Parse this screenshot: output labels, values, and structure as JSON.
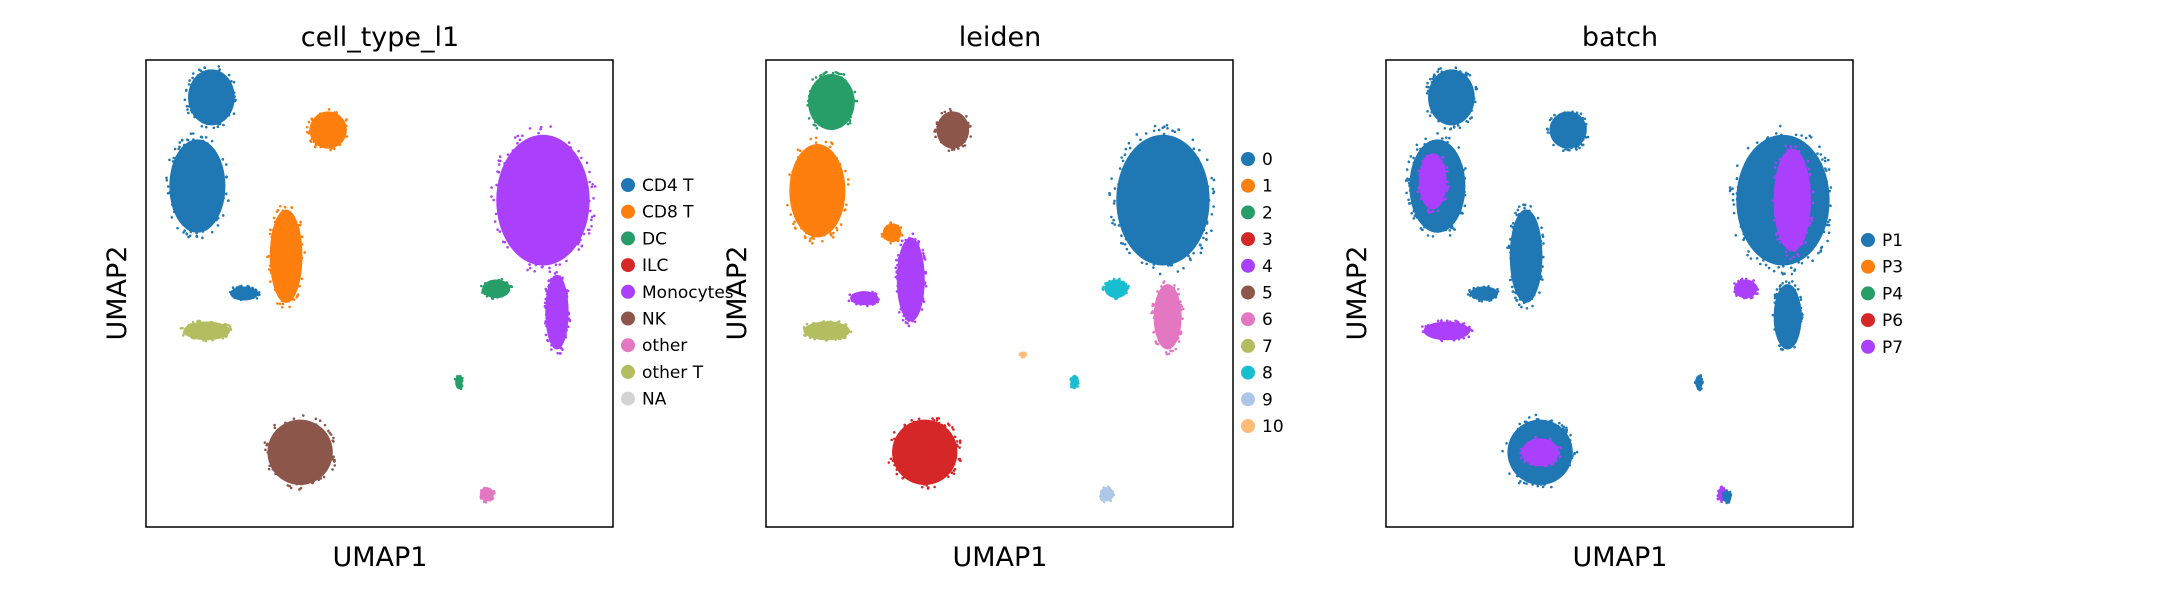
{
  "chart_data": [
    {
      "type": "scatter",
      "title": "cell_type_l1",
      "xlabel": "UMAP1",
      "ylabel": "UMAP2",
      "xlim": [
        0,
        100
      ],
      "ylim": [
        0,
        100
      ],
      "grid": false,
      "legend_placement": "right",
      "legend": [
        {
          "label": "CD4 T",
          "color": "#1f77b4"
        },
        {
          "label": "CD8 T",
          "color": "#ff7f0e"
        },
        {
          "label": "DC",
          "color": "#279e68"
        },
        {
          "label": "ILC",
          "color": "#d62728"
        },
        {
          "label": "Monocytes",
          "color": "#aa40fc"
        },
        {
          "label": "NK",
          "color": "#8c564b"
        },
        {
          "label": "other",
          "color": "#e377c2"
        },
        {
          "label": "other T",
          "color": "#b5bd61"
        },
        {
          "label": "NA",
          "color": "#d3d3d3"
        }
      ],
      "clusters": [
        {
          "color": "#1f77b4",
          "x": 14,
          "y": 92,
          "rx": 5,
          "ry": 6
        },
        {
          "color": "#1f77b4",
          "x": 11,
          "y": 73,
          "rx": 6,
          "ry": 10
        },
        {
          "color": "#1f77b4",
          "x": 21,
          "y": 50,
          "rx": 3,
          "ry": 1.5
        },
        {
          "color": "#ff7f0e",
          "x": 39,
          "y": 85,
          "rx": 4,
          "ry": 4
        },
        {
          "color": "#ff7f0e",
          "x": 30,
          "y": 58,
          "rx": 3.5,
          "ry": 10
        },
        {
          "color": "#b5bd61",
          "x": 13,
          "y": 42,
          "rx": 5,
          "ry": 2
        },
        {
          "color": "#aa40fc",
          "x": 85,
          "y": 70,
          "rx": 10,
          "ry": 14
        },
        {
          "color": "#aa40fc",
          "x": 88,
          "y": 46,
          "rx": 2.5,
          "ry": 8
        },
        {
          "color": "#279e68",
          "x": 75,
          "y": 51,
          "rx": 3,
          "ry": 2
        },
        {
          "color": "#279e68",
          "x": 67,
          "y": 31,
          "rx": 0.8,
          "ry": 1.5
        },
        {
          "color": "#8c564b",
          "x": 33,
          "y": 16,
          "rx": 7,
          "ry": 7
        },
        {
          "color": "#e377c2",
          "x": 73,
          "y": 7,
          "rx": 1.5,
          "ry": 1.5
        }
      ]
    },
    {
      "type": "scatter",
      "title": "leiden",
      "xlabel": "UMAP1",
      "ylabel": "UMAP2",
      "xlim": [
        0,
        100
      ],
      "ylim": [
        0,
        100
      ],
      "grid": false,
      "legend_placement": "right",
      "legend": [
        {
          "label": "0",
          "color": "#1f77b4"
        },
        {
          "label": "1",
          "color": "#ff7f0e"
        },
        {
          "label": "2",
          "color": "#279e68"
        },
        {
          "label": "3",
          "color": "#d62728"
        },
        {
          "label": "4",
          "color": "#aa40fc"
        },
        {
          "label": "5",
          "color": "#8c564b"
        },
        {
          "label": "6",
          "color": "#e377c2"
        },
        {
          "label": "7",
          "color": "#b5bd61"
        },
        {
          "label": "8",
          "color": "#17becf"
        },
        {
          "label": "9",
          "color": "#aec7e8"
        },
        {
          "label": "10",
          "color": "#ffbb78"
        }
      ],
      "clusters": [
        {
          "color": "#279e68",
          "x": 14,
          "y": 91,
          "rx": 5,
          "ry": 6
        },
        {
          "color": "#ff7f0e",
          "x": 11,
          "y": 72,
          "rx": 6,
          "ry": 10
        },
        {
          "color": "#ff7f0e",
          "x": 27,
          "y": 63,
          "rx": 2,
          "ry": 2
        },
        {
          "color": "#8c564b",
          "x": 40,
          "y": 85,
          "rx": 3.5,
          "ry": 4
        },
        {
          "color": "#aa40fc",
          "x": 31,
          "y": 53,
          "rx": 3,
          "ry": 9
        },
        {
          "color": "#aa40fc",
          "x": 21,
          "y": 49,
          "rx": 3,
          "ry": 1.5
        },
        {
          "color": "#b5bd61",
          "x": 13,
          "y": 42,
          "rx": 5,
          "ry": 2
        },
        {
          "color": "#1f77b4",
          "x": 85,
          "y": 70,
          "rx": 10,
          "ry": 14
        },
        {
          "color": "#e377c2",
          "x": 86,
          "y": 45,
          "rx": 3,
          "ry": 7
        },
        {
          "color": "#17becf",
          "x": 75,
          "y": 51,
          "rx": 2.5,
          "ry": 2
        },
        {
          "color": "#17becf",
          "x": 66,
          "y": 31,
          "rx": 0.8,
          "ry": 1.5
        },
        {
          "color": "#d62728",
          "x": 34,
          "y": 16,
          "rx": 7,
          "ry": 7
        },
        {
          "color": "#aec7e8",
          "x": 73,
          "y": 7,
          "rx": 1.5,
          "ry": 1.5
        },
        {
          "color": "#ffbb78",
          "x": 55,
          "y": 37,
          "rx": 0.6,
          "ry": 0.6
        }
      ]
    },
    {
      "type": "scatter",
      "title": "batch",
      "xlabel": "UMAP1",
      "ylabel": "UMAP2",
      "xlim": [
        0,
        100
      ],
      "ylim": [
        0,
        100
      ],
      "grid": false,
      "legend_placement": "right",
      "legend": [
        {
          "label": "P1",
          "color": "#1f77b4"
        },
        {
          "label": "P3",
          "color": "#ff7f0e"
        },
        {
          "label": "P4",
          "color": "#279e68"
        },
        {
          "label": "P6",
          "color": "#d62728"
        },
        {
          "label": "P7",
          "color": "#aa40fc"
        }
      ],
      "clusters": [
        {
          "color": "#1f77b4",
          "x": 14,
          "y": 92,
          "rx": 5,
          "ry": 6
        },
        {
          "color": "#1f77b4",
          "x": 11,
          "y": 73,
          "rx": 6,
          "ry": 10
        },
        {
          "color": "#aa40fc",
          "x": 10,
          "y": 74,
          "rx": 3,
          "ry": 6
        },
        {
          "color": "#1f77b4",
          "x": 39,
          "y": 85,
          "rx": 4,
          "ry": 4
        },
        {
          "color": "#1f77b4",
          "x": 30,
          "y": 58,
          "rx": 3.5,
          "ry": 10
        },
        {
          "color": "#1f77b4",
          "x": 21,
          "y": 50,
          "rx": 3,
          "ry": 1.5
        },
        {
          "color": "#aa40fc",
          "x": 13,
          "y": 42,
          "rx": 5,
          "ry": 2
        },
        {
          "color": "#1f77b4",
          "x": 85,
          "y": 70,
          "rx": 10,
          "ry": 14
        },
        {
          "color": "#aa40fc",
          "x": 87,
          "y": 70,
          "rx": 4,
          "ry": 11
        },
        {
          "color": "#1f77b4",
          "x": 86,
          "y": 45,
          "rx": 3,
          "ry": 7
        },
        {
          "color": "#aa40fc",
          "x": 77,
          "y": 51,
          "rx": 2.5,
          "ry": 2
        },
        {
          "color": "#1f77b4",
          "x": 67,
          "y": 31,
          "rx": 0.8,
          "ry": 1.5
        },
        {
          "color": "#1f77b4",
          "x": 33,
          "y": 16,
          "rx": 7,
          "ry": 7
        },
        {
          "color": "#aa40fc",
          "x": 33,
          "y": 16,
          "rx": 4,
          "ry": 3
        },
        {
          "color": "#aa40fc",
          "x": 72,
          "y": 7,
          "rx": 1,
          "ry": 1.5
        },
        {
          "color": "#1f77b4",
          "x": 73,
          "y": 6.5,
          "rx": 1,
          "ry": 1.2
        }
      ]
    }
  ]
}
